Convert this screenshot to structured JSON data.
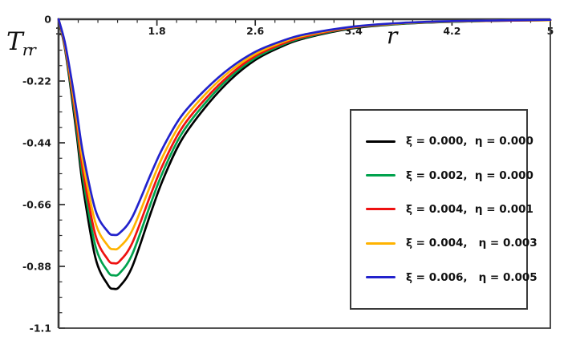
{
  "figure": {
    "background": "#ffffff",
    "frame_color": "#3a3a3a",
    "tick_color": "#2b2b2b",
    "tick_label_color": "#1a1a1a"
  },
  "chart_data": {
    "type": "line",
    "title": "",
    "xlabel": "r",
    "ylabel": "T_rr",
    "ylabel_base": "T",
    "ylabel_sub": "rr",
    "xlim": [
      1,
      5
    ],
    "ylim": [
      -1.1,
      0
    ],
    "grid": false,
    "legend_position": "right-middle",
    "x_ticks": [
      {
        "v": 1.0,
        "label": "1"
      },
      {
        "v": 1.8,
        "label": "1.8"
      },
      {
        "v": 2.6,
        "label": "2.6"
      },
      {
        "v": 3.4,
        "label": "3.4"
      },
      {
        "v": 4.2,
        "label": "4.2"
      },
      {
        "v": 5.0,
        "label": "5"
      }
    ],
    "y_ticks": [
      {
        "v": 0.0,
        "label": "0"
      },
      {
        "v": -0.22,
        "label": "-0.22"
      },
      {
        "v": -0.44,
        "label": "-0.44"
      },
      {
        "v": -0.66,
        "label": "-0.66"
      },
      {
        "v": -0.88,
        "label": "-0.88"
      },
      {
        "v": -1.1,
        "label": "-1.1"
      }
    ],
    "x_minor_subdivisions": 5,
    "y_minor_subdivisions": 4,
    "x": [
      1.0,
      1.05,
      1.1,
      1.15,
      1.2,
      1.3,
      1.4,
      1.45,
      1.5,
      1.6,
      1.75,
      1.85,
      2.0,
      2.2,
      2.4,
      2.6,
      2.8,
      3.0,
      3.4,
      3.8,
      4.2,
      4.6,
      5.0
    ],
    "series": [
      {
        "name": "ξ = 0.000,  η = 0.000",
        "color": "#000000",
        "min_point": {
          "r": 1.45,
          "T": -0.96
        },
        "values": [
          0,
          -0.1,
          -0.25,
          -0.42,
          -0.6,
          -0.85,
          -0.945,
          -0.96,
          -0.95,
          -0.88,
          -0.69,
          -0.57,
          -0.43,
          -0.31,
          -0.215,
          -0.145,
          -0.1,
          -0.068,
          -0.032,
          -0.016,
          -0.009,
          -0.005,
          -0.003
        ]
      },
      {
        "name": "ξ = 0.002,  η = 0.000",
        "color": "#00A24D",
        "min_point": {
          "r": 1.45,
          "T": -0.91
        },
        "values": [
          0,
          -0.095,
          -0.238,
          -0.399,
          -0.57,
          -0.808,
          -0.898,
          -0.912,
          -0.903,
          -0.836,
          -0.656,
          -0.542,
          -0.409,
          -0.295,
          -0.204,
          -0.138,
          -0.095,
          -0.065,
          -0.03,
          -0.015,
          -0.009,
          -0.005,
          -0.003
        ]
      },
      {
        "name": "ξ = 0.004,  η = 0.001",
        "color": "#EE1111",
        "min_point": {
          "r": 1.45,
          "T": -0.87
        },
        "values": [
          0,
          -0.091,
          -0.226,
          -0.38,
          -0.543,
          -0.769,
          -0.855,
          -0.869,
          -0.86,
          -0.796,
          -0.624,
          -0.516,
          -0.389,
          -0.281,
          -0.195,
          -0.131,
          -0.091,
          -0.062,
          -0.029,
          -0.014,
          -0.008,
          -0.005,
          -0.003
        ]
      },
      {
        "name": "ξ = 0.004,   η = 0.003",
        "color": "#FFB300",
        "min_point": {
          "r": 1.45,
          "T": -0.82
        },
        "values": [
          0,
          -0.085,
          -0.213,
          -0.358,
          -0.512,
          -0.725,
          -0.806,
          -0.819,
          -0.81,
          -0.751,
          -0.589,
          -0.486,
          -0.367,
          -0.264,
          -0.183,
          -0.124,
          -0.085,
          -0.058,
          -0.027,
          -0.014,
          -0.008,
          -0.004,
          -0.003
        ]
      },
      {
        "name": "ξ = 0.006,   η = 0.005",
        "color": "#2222CC",
        "min_point": {
          "r": 1.43,
          "T": -0.77
        },
        "values": [
          0,
          -0.08,
          -0.2,
          -0.336,
          -0.48,
          -0.68,
          -0.756,
          -0.768,
          -0.76,
          -0.704,
          -0.552,
          -0.456,
          -0.344,
          -0.248,
          -0.172,
          -0.116,
          -0.08,
          -0.054,
          -0.026,
          -0.013,
          -0.007,
          -0.004,
          -0.002
        ]
      }
    ]
  }
}
